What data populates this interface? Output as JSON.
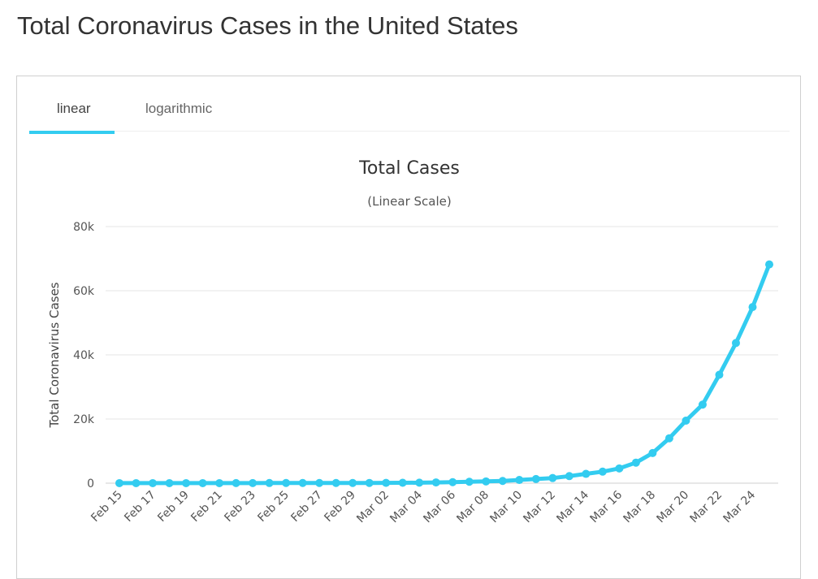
{
  "page": {
    "title": "Total Coronavirus Cases in the United States"
  },
  "tabs": [
    {
      "label": "linear",
      "active": true
    },
    {
      "label": "logarithmic",
      "active": false
    }
  ],
  "colors": {
    "series": "#33ccf0",
    "active_tab": "#33ccf0",
    "grid": "#e6e6e6"
  },
  "chart_data": {
    "type": "line",
    "title": "Total Cases",
    "subtitle": "(Linear Scale)",
    "xlabel": "",
    "ylabel": "Total Coronavirus Cases",
    "ylim": [
      0,
      80000
    ],
    "yticks": [
      0,
      20000,
      40000,
      60000,
      80000
    ],
    "ytick_labels": [
      "0",
      "20k",
      "40k",
      "60k",
      "80k"
    ],
    "grid": true,
    "legend": "none",
    "categories": [
      "Feb 15",
      "Feb 16",
      "Feb 17",
      "Feb 18",
      "Feb 19",
      "Feb 20",
      "Feb 21",
      "Feb 22",
      "Feb 23",
      "Feb 24",
      "Feb 25",
      "Feb 26",
      "Feb 27",
      "Feb 28",
      "Feb 29",
      "Mar 01",
      "Mar 02",
      "Mar 03",
      "Mar 04",
      "Mar 05",
      "Mar 06",
      "Mar 07",
      "Mar 08",
      "Mar 09",
      "Mar 10",
      "Mar 11",
      "Mar 12",
      "Mar 13",
      "Mar 14",
      "Mar 15",
      "Mar 16",
      "Mar 17",
      "Mar 18",
      "Mar 19",
      "Mar 20",
      "Mar 21",
      "Mar 22",
      "Mar 23",
      "Mar 24",
      "Mar 25"
    ],
    "xtick_labels": [
      "Feb 15",
      "Feb 17",
      "Feb 19",
      "Feb 21",
      "Feb 23",
      "Feb 25",
      "Feb 27",
      "Feb 29",
      "Mar 02",
      "Mar 04",
      "Mar 06",
      "Mar 08",
      "Mar 10",
      "Mar 12",
      "Mar 14",
      "Mar 16",
      "Mar 18",
      "Mar 20",
      "Mar 22",
      "Mar 24"
    ],
    "series": [
      {
        "name": "Cases",
        "values": [
          15,
          15,
          15,
          15,
          15,
          15,
          15,
          35,
          35,
          53,
          57,
          60,
          60,
          62,
          68,
          75,
          100,
          125,
          160,
          230,
          320,
          440,
          550,
          700,
          1000,
          1300,
          1600,
          2200,
          2900,
          3600,
          4600,
          6400,
          9400,
          14000,
          19500,
          24500,
          33800,
          43700,
          54900,
          68200
        ]
      }
    ]
  }
}
